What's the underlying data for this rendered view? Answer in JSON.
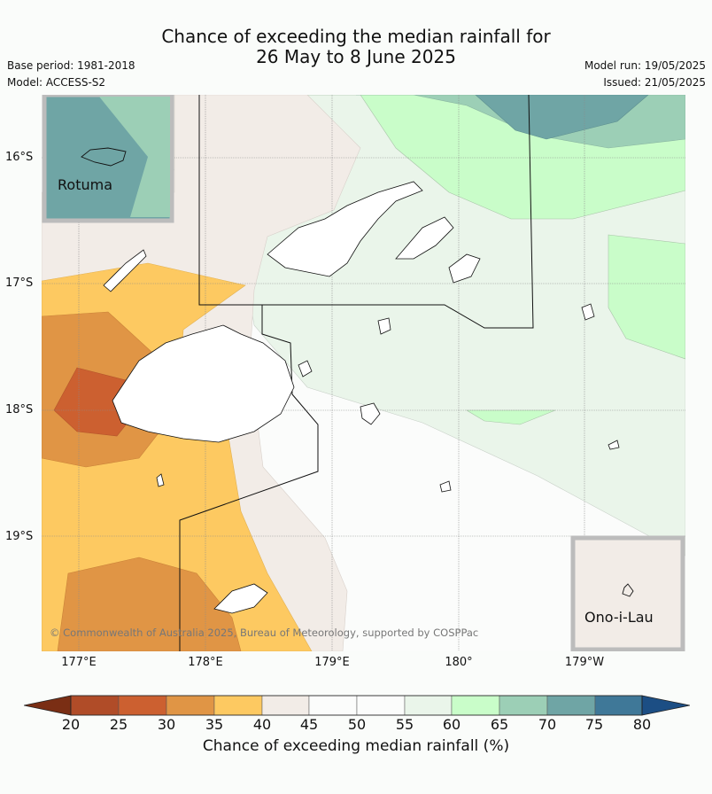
{
  "title_line1": "Chance of exceeding the median rainfall for",
  "title_line2": "26 May to 8 June 2025",
  "base_period": "Base period: 1981-2018",
  "model": "Model: ACCESS-S2",
  "model_run": "Model run: 19/05/2025",
  "issued": "Issued: 21/05/2025",
  "lat_labels": [
    "16°S",
    "17°S",
    "18°S",
    "19°S"
  ],
  "lon_labels": [
    "177°E",
    "178°E",
    "179°E",
    "180°",
    "179°W"
  ],
  "inset_rotuma": "Rotuma",
  "inset_ono": "Ono-i-Lau",
  "copyright": "© Commonwealth of Australia 2025, Bureau of Meteorology, supported by COSPPac",
  "colorbar": {
    "ticks": [
      "20",
      "25",
      "30",
      "35",
      "40",
      "45",
      "50",
      "55",
      "60",
      "65",
      "70",
      "75",
      "80"
    ],
    "label": "Chance of exceeding median rainfall (%)",
    "colors": [
      "#7a2e14",
      "#b04c28",
      "#cc6030",
      "#e09545",
      "#fdc961",
      "#f2ece7",
      "#fbfcfb",
      "#fbfcfb",
      "#eaf5ea",
      "#c9fdc9",
      "#9ccfb6",
      "#6fa5a5",
      "#3f7898",
      "#1c4e84"
    ]
  }
}
